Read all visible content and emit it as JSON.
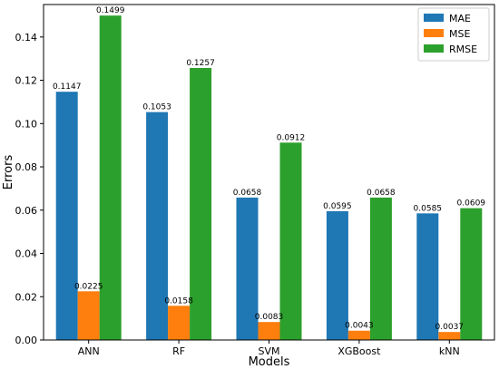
{
  "chart_data": {
    "type": "bar",
    "categories": [
      "ANN",
      "RF",
      "SVM",
      "XGBoost",
      "kNN"
    ],
    "series": [
      {
        "name": "MAE",
        "color": "#1f77b4",
        "values": [
          0.1147,
          0.1053,
          0.0658,
          0.0595,
          0.0585
        ]
      },
      {
        "name": "MSE",
        "color": "#ff7f0e",
        "values": [
          0.0225,
          0.0158,
          0.0083,
          0.0043,
          0.0037
        ]
      },
      {
        "name": "RMSE",
        "color": "#2ca02c",
        "values": [
          0.1499,
          0.1257,
          0.0912,
          0.0658,
          0.0609
        ]
      }
    ],
    "data_labels": [
      [
        "0.1147",
        "0.0225",
        "0.1499"
      ],
      [
        "0.1053",
        "0.0158",
        "0.1257"
      ],
      [
        "0.0658",
        "0.0083",
        "0.0912"
      ],
      [
        "0.0595",
        "0.0043",
        "0.0658"
      ],
      [
        "0.0585",
        "0.0037",
        "0.0609"
      ]
    ],
    "title": "",
    "xlabel": "Models",
    "ylabel": "Errors",
    "ylim": [
      0,
      0.155
    ],
    "yticks": [
      0.0,
      0.02,
      0.04,
      0.06,
      0.08,
      0.1,
      0.12,
      0.14
    ],
    "ytick_labels": [
      "0.00",
      "0.02",
      "0.04",
      "0.06",
      "0.08",
      "0.10",
      "0.12",
      "0.14"
    ],
    "grid": false,
    "legend_position": "top-right"
  }
}
